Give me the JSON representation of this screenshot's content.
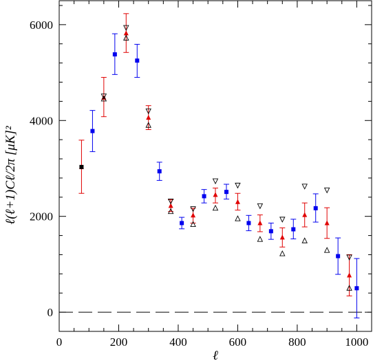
{
  "chart_data": {
    "type": "scatter",
    "title": "",
    "xlabel": "ℓ",
    "ylabel": "ℓ(ℓ+1)Cℓ/2π   [μK]²",
    "xlim": [
      0,
      1050
    ],
    "ylim": [
      -400,
      6500
    ],
    "xticks": [
      0,
      200,
      400,
      600,
      800,
      1000
    ],
    "yticks": [
      0,
      2000,
      4000,
      6000
    ],
    "grid": false,
    "reference_line": {
      "y": 0,
      "style": "dashed"
    },
    "colors": {
      "red": "#e00000",
      "blue": "#0000ee",
      "black": "#000000"
    },
    "series": [
      {
        "marker": "triangle-up",
        "color": "red",
        "points": [
          {
            "x": 75,
            "y": 3030,
            "lo": 2480,
            "hi": 3590
          },
          {
            "x": 150,
            "y": 4480,
            "lo": 4080,
            "hi": 4900
          },
          {
            "x": 225,
            "y": 5820,
            "lo": 5420,
            "hi": 6230
          },
          {
            "x": 300,
            "y": 4060,
            "lo": 3810,
            "hi": 4310
          },
          {
            "x": 375,
            "y": 2220,
            "lo": 2100,
            "hi": 2350
          },
          {
            "x": 450,
            "y": 2020,
            "lo": 1860,
            "hi": 2170
          },
          {
            "x": 525,
            "y": 2450,
            "lo": 2280,
            "hi": 2590
          },
          {
            "x": 600,
            "y": 2300,
            "lo": 2130,
            "hi": 2480
          },
          {
            "x": 675,
            "y": 1860,
            "lo": 1680,
            "hi": 2030
          },
          {
            "x": 750,
            "y": 1560,
            "lo": 1360,
            "hi": 1760
          },
          {
            "x": 825,
            "y": 2030,
            "lo": 1780,
            "hi": 2280
          },
          {
            "x": 900,
            "y": 1860,
            "lo": 1540,
            "hi": 2180
          },
          {
            "x": 975,
            "y": 770,
            "lo": 340,
            "hi": 1200
          }
        ]
      },
      {
        "marker": "square",
        "color": "blue",
        "points": [
          {
            "x": 112,
            "y": 3780,
            "lo": 3350,
            "hi": 4210
          },
          {
            "x": 187,
            "y": 5380,
            "lo": 4960,
            "hi": 5810
          },
          {
            "x": 262,
            "y": 5250,
            "lo": 4900,
            "hi": 5590
          },
          {
            "x": 337,
            "y": 2940,
            "lo": 2750,
            "hi": 3130
          },
          {
            "x": 412,
            "y": 1860,
            "lo": 1740,
            "hi": 1980
          },
          {
            "x": 487,
            "y": 2420,
            "lo": 2280,
            "hi": 2560
          },
          {
            "x": 562,
            "y": 2510,
            "lo": 2360,
            "hi": 2670
          },
          {
            "x": 637,
            "y": 1860,
            "lo": 1700,
            "hi": 2020
          },
          {
            "x": 712,
            "y": 1690,
            "lo": 1520,
            "hi": 1860
          },
          {
            "x": 787,
            "y": 1730,
            "lo": 1530,
            "hi": 1940
          },
          {
            "x": 862,
            "y": 2170,
            "lo": 1880,
            "hi": 2470
          },
          {
            "x": 937,
            "y": 1170,
            "lo": 790,
            "hi": 1550
          },
          {
            "x": 1000,
            "y": 500,
            "lo": -120,
            "hi": 1120
          }
        ]
      },
      {
        "marker": "triangle-up-open",
        "color": "black",
        "points": [
          {
            "x": 150,
            "y": 4450
          },
          {
            "x": 225,
            "y": 5720
          },
          {
            "x": 300,
            "y": 3900
          },
          {
            "x": 375,
            "y": 2100
          },
          {
            "x": 450,
            "y": 1830
          },
          {
            "x": 525,
            "y": 2170
          },
          {
            "x": 600,
            "y": 1950
          },
          {
            "x": 675,
            "y": 1520
          },
          {
            "x": 750,
            "y": 1220
          },
          {
            "x": 825,
            "y": 1490
          },
          {
            "x": 900,
            "y": 1290
          },
          {
            "x": 975,
            "y": 500
          }
        ]
      },
      {
        "marker": "triangle-down-open",
        "color": "black",
        "points": [
          {
            "x": 150,
            "y": 4510
          },
          {
            "x": 225,
            "y": 5940
          },
          {
            "x": 300,
            "y": 4200
          },
          {
            "x": 375,
            "y": 2320
          },
          {
            "x": 450,
            "y": 2160
          },
          {
            "x": 525,
            "y": 2740
          },
          {
            "x": 600,
            "y": 2650
          },
          {
            "x": 675,
            "y": 2220
          },
          {
            "x": 750,
            "y": 1940
          },
          {
            "x": 825,
            "y": 2630
          },
          {
            "x": 900,
            "y": 2550
          },
          {
            "x": 975,
            "y": 1150
          }
        ]
      },
      {
        "marker": "square",
        "color": "black",
        "points": [
          {
            "x": 75,
            "y": 3030
          }
        ]
      }
    ]
  }
}
